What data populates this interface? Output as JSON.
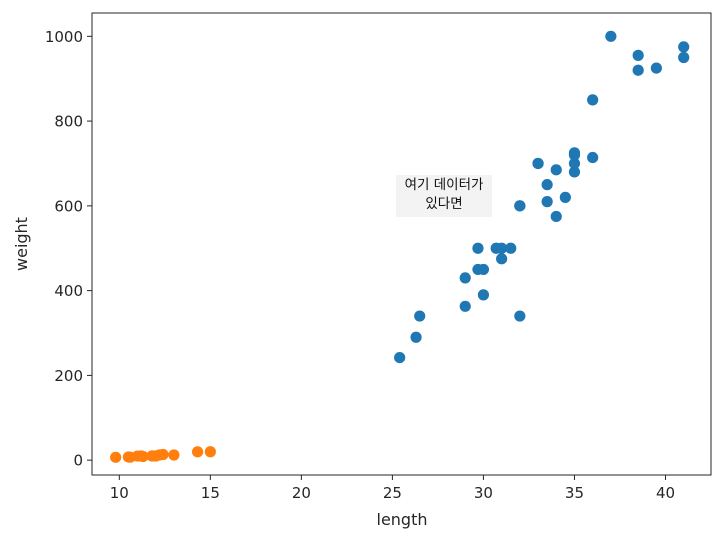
{
  "chart_data": {
    "type": "scatter",
    "xlabel": "length",
    "ylabel": "weight",
    "xlim": [
      8.5,
      42.5
    ],
    "ylim": [
      -35,
      1055
    ],
    "xticks": [
      10,
      15,
      20,
      25,
      30,
      35,
      40
    ],
    "yticks": [
      0,
      200,
      400,
      600,
      800,
      1000
    ],
    "grid": false,
    "series": [
      {
        "color": "#1f77b4",
        "points": [
          [
            25.4,
            242
          ],
          [
            26.3,
            290
          ],
          [
            26.5,
            340
          ],
          [
            29.0,
            363
          ],
          [
            29.0,
            430
          ],
          [
            29.7,
            450
          ],
          [
            29.7,
            500
          ],
          [
            30.0,
            390
          ],
          [
            30.0,
            450
          ],
          [
            30.7,
            500
          ],
          [
            31.0,
            475
          ],
          [
            31.0,
            500
          ],
          [
            31.5,
            500
          ],
          [
            32.0,
            340
          ],
          [
            32.0,
            600
          ],
          [
            32.0,
            600
          ],
          [
            33.0,
            700
          ],
          [
            33.0,
            700
          ],
          [
            33.5,
            610
          ],
          [
            33.5,
            650
          ],
          [
            34.0,
            575
          ],
          [
            34.0,
            685
          ],
          [
            34.5,
            620
          ],
          [
            35.0,
            680
          ],
          [
            35.0,
            700
          ],
          [
            35.0,
            725
          ],
          [
            35.0,
            720
          ],
          [
            36.0,
            714
          ],
          [
            36.0,
            850
          ],
          [
            37.0,
            1000
          ],
          [
            38.5,
            920
          ],
          [
            38.5,
            955
          ],
          [
            39.5,
            925
          ],
          [
            41.0,
            975
          ],
          [
            41.0,
            950
          ]
        ]
      },
      {
        "color": "#ff7f0e",
        "points": [
          [
            9.8,
            6.7
          ],
          [
            10.5,
            7.5
          ],
          [
            10.6,
            7.0
          ],
          [
            11.0,
            9.7
          ],
          [
            11.2,
            9.8
          ],
          [
            11.3,
            8.7
          ],
          [
            11.8,
            10.0
          ],
          [
            11.8,
            9.9
          ],
          [
            12.0,
            9.8
          ],
          [
            12.2,
            12.2
          ],
          [
            12.4,
            13.4
          ],
          [
            13.0,
            12.2
          ],
          [
            14.3,
            19.7
          ],
          [
            15.0,
            19.9
          ]
        ]
      }
    ],
    "annotation": {
      "lines": [
        "여기 데이터가",
        "있다면"
      ]
    }
  }
}
